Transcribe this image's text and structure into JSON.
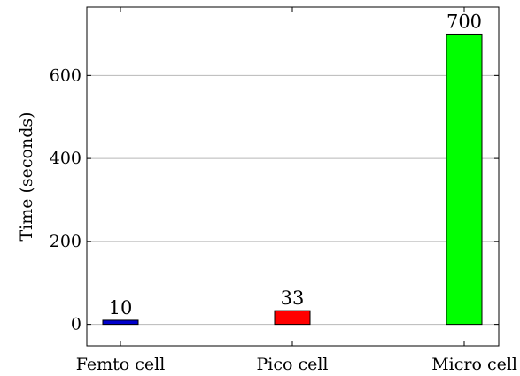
{
  "chart_data": {
    "type": "bar",
    "categories": [
      "Femto cell",
      "Pico cell",
      "Micro cell"
    ],
    "values": [
      10,
      33,
      700
    ],
    "colors": [
      "#0000cc",
      "#ff0000",
      "#00ff00"
    ],
    "data_labels": [
      "10",
      "33",
      "700"
    ],
    "ylabel": "Time (seconds)",
    "xlabel": "",
    "title": "",
    "yticks": [
      0,
      200,
      400,
      600
    ],
    "ylim": [
      -52,
      765
    ],
    "grid": "horizontal",
    "legend": "none"
  }
}
